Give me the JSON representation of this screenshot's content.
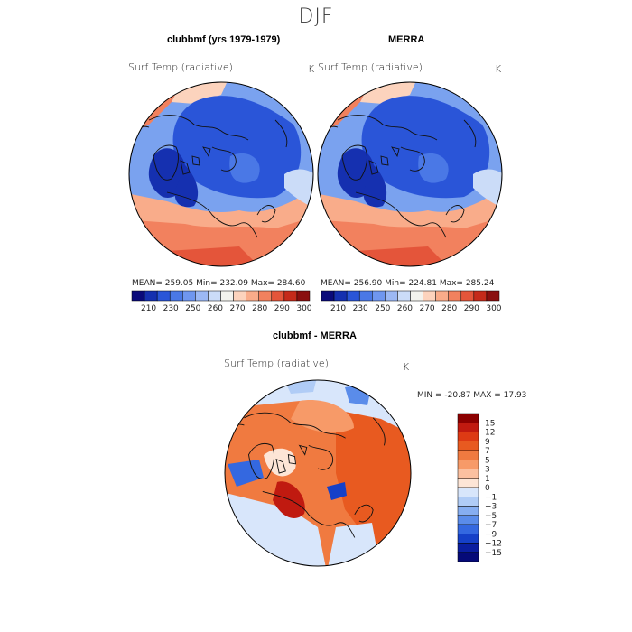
{
  "season": "DJF",
  "panels": [
    {
      "title": "clubbmf (yrs 1979-1979)",
      "variable": "Surf Temp (radiative)",
      "units": "K",
      "stats": "MEAN= 259.05   Min= 232.09   Max= 284.60"
    },
    {
      "title": "MERRA",
      "variable": "Surf Temp (radiative)",
      "units": "K",
      "stats": "MEAN= 256.90   Min= 224.81   Max= 285.24"
    },
    {
      "title": "clubbmf - MERRA",
      "variable": "Surf Temp (radiative)",
      "units": "K",
      "stats": "MIN = -20.87  MAX =   17.93"
    }
  ],
  "colorbar_abs": {
    "labels": [
      "210",
      "230",
      "250",
      "260",
      "270",
      "280",
      "290",
      "300"
    ],
    "colors": [
      "#0a0a7a",
      "#1530b0",
      "#2a55d8",
      "#4a78e6",
      "#6f96ef",
      "#9cb8f4",
      "#cbdcf8",
      "#f3f3ee",
      "#fcd3bd",
      "#f9ac8a",
      "#f2815e",
      "#e4553a",
      "#c52a1a",
      "#8a0f0f"
    ]
  },
  "colorbar_diff": {
    "labels": [
      "15",
      "12",
      "9",
      "7",
      "5",
      "3",
      "1",
      "0",
      "−1",
      "−3",
      "−5",
      "−7",
      "−9",
      "−12",
      "−15"
    ],
    "colors": [
      "#8b0000",
      "#c01a10",
      "#dd3a14",
      "#e85a20",
      "#f07a40",
      "#f79a68",
      "#fbc0a0",
      "#fde5d6",
      "#d8e6fb",
      "#b0ccf6",
      "#86aef1",
      "#5a8cea",
      "#3468e0",
      "#1540c8",
      "#0a1ea0",
      "#050a78"
    ]
  }
}
